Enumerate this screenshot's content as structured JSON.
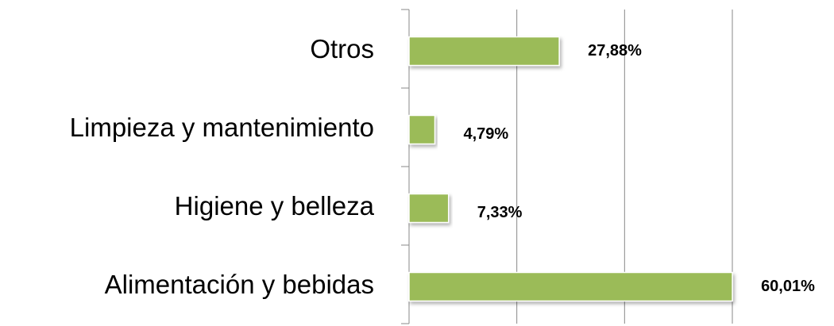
{
  "chart_data": {
    "type": "barh",
    "categories": [
      "Otros",
      "Limpieza y mantenimiento",
      "Higiene y belleza",
      "Alimentación y bebidas"
    ],
    "values": [
      27.88,
      4.79,
      7.33,
      60.01
    ],
    "value_labels": [
      "27,88%",
      "4,79%",
      "7,33%",
      "60,01%"
    ],
    "color": "#9bbb59",
    "xlim": [
      0,
      60
    ],
    "xticks": [
      0,
      20,
      40,
      60
    ],
    "grid": true
  }
}
